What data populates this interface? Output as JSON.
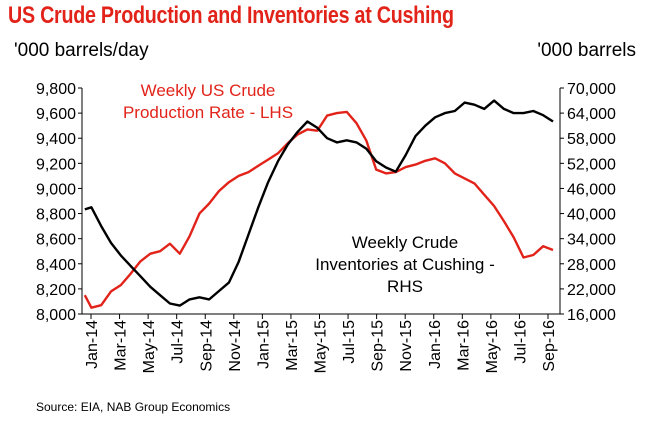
{
  "title": "US Crude Production and Inventories at Cushing",
  "left_unit": "'000 barrels/day",
  "right_unit": "'000 barrels",
  "source": "Source:  EIA, NAB Group Economics",
  "annotations": {
    "production": [
      "Weekly US Crude",
      "Production Rate - LHS"
    ],
    "inventories": [
      "Weekly Crude",
      "Inventories at Cushing -",
      "RHS"
    ]
  },
  "colors": {
    "production": "#e2231a",
    "inventories": "#000000",
    "title": "#e2231a"
  },
  "chart_data": {
    "type": "line",
    "x_tick_labels": [
      "Jan-14",
      "Mar-14",
      "May-14",
      "Jul-14",
      "Sep-14",
      "Nov-14",
      "Jan-15",
      "Mar-15",
      "May-15",
      "Jul-15",
      "Sep-15",
      "Nov-15",
      "Jan-16",
      "Mar-16",
      "May-16",
      "Jul-16",
      "Sep-16"
    ],
    "y_left": {
      "label": "'000 barrels/day",
      "range": [
        8000,
        9800
      ],
      "ticks": [
        "8,000",
        "8,200",
        "8,400",
        "8,600",
        "8,800",
        "9,000",
        "9,200",
        "9,400",
        "9,600",
        "9,800"
      ]
    },
    "y_right": {
      "label": "'000 barrels",
      "range": [
        16000,
        70000
      ],
      "ticks": [
        "16,000",
        "22,000",
        "28,000",
        "34,000",
        "40,000",
        "46,000",
        "52,000",
        "58,000",
        "64,000",
        "70,000"
      ]
    },
    "series": [
      {
        "name": "Weekly US Crude Production Rate - LHS",
        "axis": "left",
        "x": [
          "2014-01-03",
          "2014-01-17",
          "2014-02-07",
          "2014-02-28",
          "2014-03-21",
          "2014-04-11",
          "2014-05-02",
          "2014-05-23",
          "2014-06-13",
          "2014-07-04",
          "2014-07-25",
          "2014-08-15",
          "2014-09-05",
          "2014-09-26",
          "2014-10-17",
          "2014-11-07",
          "2014-11-28",
          "2014-12-19",
          "2015-01-09",
          "2015-01-30",
          "2015-02-20",
          "2015-03-13",
          "2015-04-03",
          "2015-04-24",
          "2015-05-15",
          "2015-06-05",
          "2015-06-26",
          "2015-07-17",
          "2015-08-07",
          "2015-08-28",
          "2015-09-18",
          "2015-10-09",
          "2015-10-30",
          "2015-11-20",
          "2015-12-11",
          "2016-01-01",
          "2016-01-22",
          "2016-02-12",
          "2016-03-04",
          "2016-03-25",
          "2016-04-15",
          "2016-05-06",
          "2016-05-27",
          "2016-06-17",
          "2016-07-08",
          "2016-07-29",
          "2016-08-19",
          "2016-09-09",
          "2016-09-30"
        ],
        "values": [
          8150,
          8050,
          8070,
          8180,
          8230,
          8320,
          8420,
          8480,
          8500,
          8560,
          8480,
          8620,
          8800,
          8880,
          8980,
          9050,
          9100,
          9130,
          9180,
          9230,
          9280,
          9360,
          9430,
          9470,
          9460,
          9580,
          9600,
          9610,
          9520,
          9380,
          9150,
          9120,
          9130,
          9170,
          9190,
          9220,
          9240,
          9200,
          9120,
          9080,
          9040,
          8950,
          8860,
          8740,
          8610,
          8450,
          8470,
          8540,
          8510
        ]
      },
      {
        "name": "Weekly Crude Inventories at Cushing - RHS",
        "axis": "right",
        "x": [
          "2014-01-03",
          "2014-01-17",
          "2014-02-07",
          "2014-02-28",
          "2014-03-21",
          "2014-04-11",
          "2014-05-02",
          "2014-05-23",
          "2014-06-13",
          "2014-07-04",
          "2014-07-25",
          "2014-08-15",
          "2014-09-05",
          "2014-09-26",
          "2014-10-17",
          "2014-11-07",
          "2014-11-28",
          "2014-12-19",
          "2015-01-09",
          "2015-01-30",
          "2015-02-20",
          "2015-03-13",
          "2015-04-03",
          "2015-04-24",
          "2015-05-15",
          "2015-06-05",
          "2015-06-26",
          "2015-07-17",
          "2015-08-07",
          "2015-08-28",
          "2015-09-18",
          "2015-10-09",
          "2015-10-30",
          "2015-11-20",
          "2015-12-11",
          "2016-01-01",
          "2016-01-22",
          "2016-02-12",
          "2016-03-04",
          "2016-03-25",
          "2016-04-15",
          "2016-05-06",
          "2016-05-27",
          "2016-06-17",
          "2016-07-08",
          "2016-07-29",
          "2016-08-19",
          "2016-09-09",
          "2016-09-30"
        ],
        "values": [
          41000,
          41500,
          37000,
          33000,
          30000,
          27500,
          25000,
          22500,
          20500,
          18500,
          18000,
          19500,
          20000,
          19500,
          21500,
          23500,
          28500,
          35000,
          41500,
          47500,
          52500,
          56500,
          59500,
          62000,
          60500,
          58000,
          57000,
          57500,
          57000,
          55500,
          52500,
          51000,
          50000,
          54000,
          58500,
          61000,
          63000,
          64000,
          64500,
          66500,
          66000,
          65000,
          67000,
          65000,
          64000,
          64000,
          64500,
          63500,
          62000
        ]
      }
    ]
  }
}
